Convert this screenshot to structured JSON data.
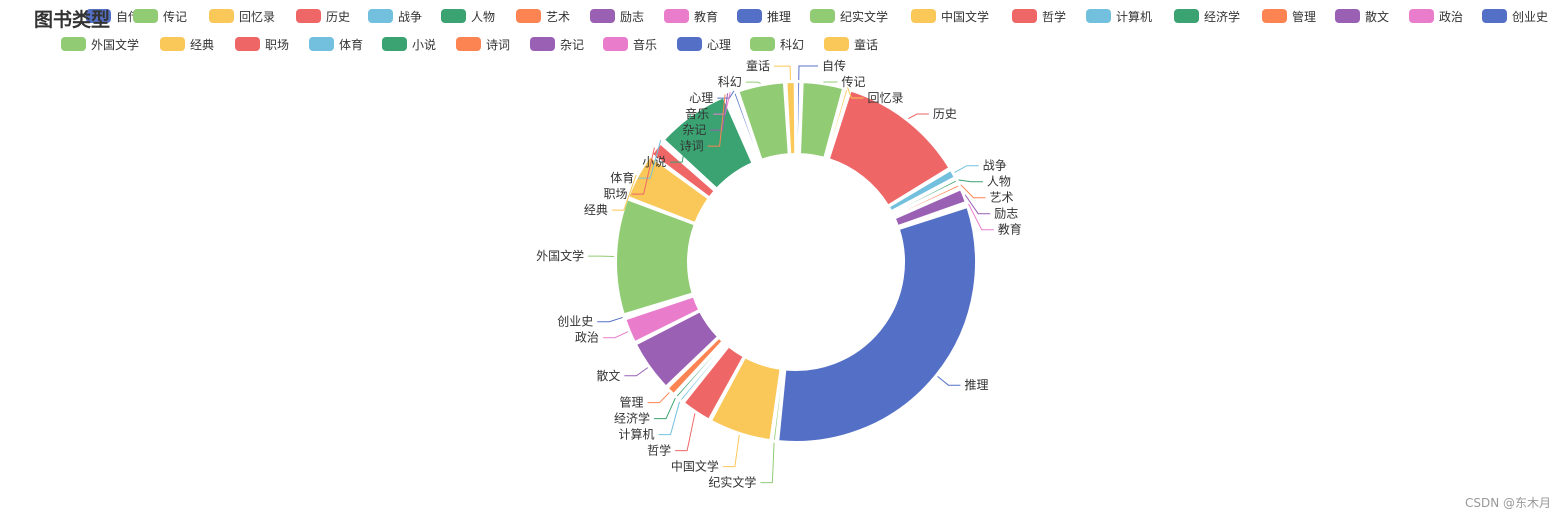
{
  "watermark": "CSDN @东木月",
  "palette": [
    "#91cc75",
    "#fac858",
    "#ee6666",
    "#73c0de",
    "#3ba272",
    "#fc8452",
    "#9a60b4",
    "#ea7ccc",
    "#5470c6"
  ],
  "chart_data": {
    "type": "pie",
    "subtype": "donut",
    "title": "图书类型",
    "legend_position": "top",
    "legend_rows": [
      [
        "自传",
        "传记",
        "回忆录",
        "历史",
        "战争",
        "人物",
        "艺术",
        "励志",
        "教育",
        "推理",
        "纪实文学",
        "中国文学",
        "哲学",
        "计算机",
        "经济学",
        "管理",
        "散文",
        "政治",
        "创业史"
      ],
      [
        "外国文学",
        "经典",
        "职场",
        "体育",
        "小说",
        "诗词",
        "杂记",
        "音乐",
        "心理",
        "科幻",
        "童话"
      ]
    ],
    "categories": [
      "自传",
      "传记",
      "回忆录",
      "历史",
      "战争",
      "人物",
      "艺术",
      "励志",
      "教育",
      "推理",
      "纪实文学",
      "中国文学",
      "哲学",
      "计算机",
      "经济学",
      "管理",
      "散文",
      "政治",
      "创业史",
      "外国文学",
      "经典",
      "职场",
      "体育",
      "小说",
      "诗词",
      "杂记",
      "音乐",
      "心理",
      "科幻",
      "童话"
    ],
    "values": [
      1,
      8,
      1,
      24,
      2,
      1,
      1,
      3,
      0.5,
      66,
      1,
      12,
      6,
      1,
      1,
      2,
      10,
      5,
      0.5,
      22,
      9,
      3,
      0.5,
      14,
      0.5,
      0.5,
      0.5,
      1,
      9,
      2
    ],
    "colors": [
      "#5470c6",
      "#91cc75",
      "#fac858",
      "#ee6666",
      "#73c0de",
      "#3ba272",
      "#fc8452",
      "#9a60b4",
      "#ea7ccc",
      "#5470c6",
      "#91cc75",
      "#fac858",
      "#ee6666",
      "#73c0de",
      "#3ba272",
      "#fc8452",
      "#9a60b4",
      "#ea7ccc",
      "#5470c6",
      "#91cc75",
      "#fac858",
      "#ee6666",
      "#73c0de",
      "#3ba272",
      "#fc8452",
      "#9a60b4",
      "#ea7ccc",
      "#5470c6",
      "#91cc75",
      "#fac858"
    ]
  }
}
